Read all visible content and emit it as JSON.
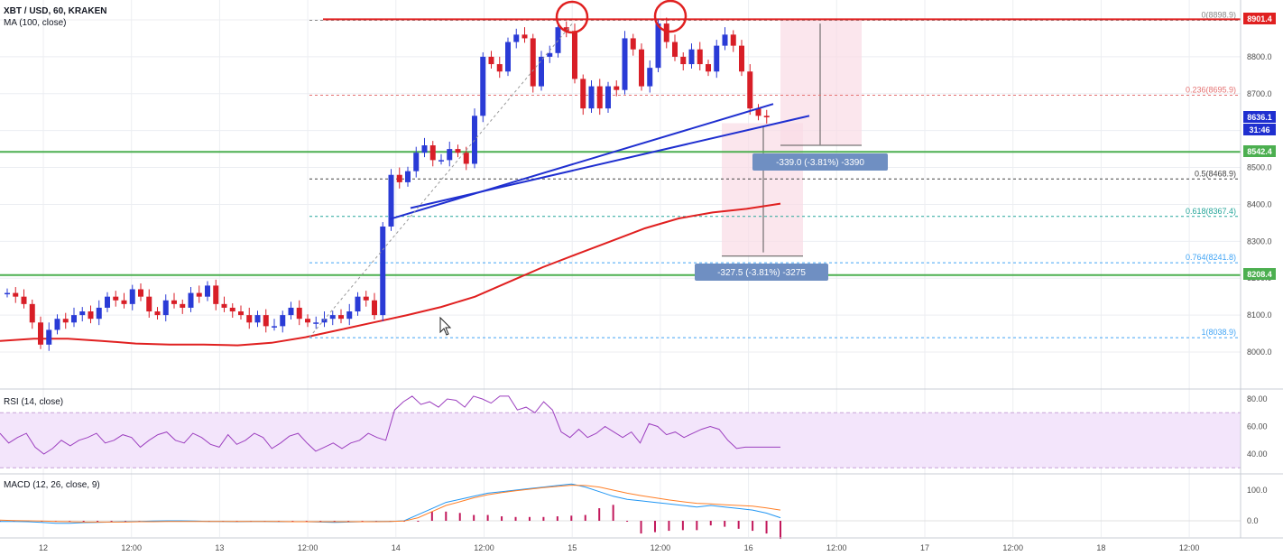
{
  "header": {
    "symbol": "XBT / USD, 60, KRAKEN",
    "ma_label": "MA (100, close)",
    "rsi_label": "RSI (14, close)",
    "macd_label": "MACD (12, 26, close, 9)"
  },
  "colors": {
    "up": "#2a3bd6",
    "down": "#d81e27",
    "ma": "#e02020",
    "trendline": "#1f2fd0",
    "resistance": "#e02020",
    "support": "#4caf50",
    "rsi": "#9c3fbf",
    "rsi_band": "#f3e5fb",
    "macd_line": "#2196f3",
    "signal_line": "#ff7f27",
    "histogram": "#c2185b",
    "measure_box": "#6f8fc2",
    "measure_zone": "#fadbe6"
  },
  "price_tags": {
    "resistance": "8901.4",
    "last": "8636.1",
    "countdown": "31:46",
    "support_upper": "8542.4",
    "support_lower": "8208.4"
  },
  "measurements": [
    {
      "label": "-339.0 (-3.81%) -3390"
    },
    {
      "label": "-327.5 (-3.81%) -3275"
    }
  ],
  "chart_data": [
    {
      "type": "candlestick",
      "title": "XBT / USD, 60, KRAKEN",
      "ylim": [
        7900,
        9000
      ],
      "y_ticks": [
        "8000.0",
        "8100.0",
        "8200.0",
        "8300.0",
        "8400.0",
        "8500.0",
        "8600.0",
        "8700.0",
        "8800.0",
        "8900.0"
      ],
      "x_ticks": [
        "12",
        "12:00",
        "13",
        "12:00",
        "14",
        "12:00",
        "15",
        "12:00",
        "16",
        "12:00",
        "17",
        "12:00",
        "18",
        "12:00"
      ],
      "fib_levels": [
        {
          "label": "0(8898.9)",
          "value": 8898.9
        },
        {
          "label": "0.236(8695.9)",
          "value": 8695.9
        },
        {
          "label": "0.5(8468.9)",
          "value": 8468.9
        },
        {
          "label": "0.618(8367.4)",
          "value": 8367.4
        },
        {
          "label": "0.764(8241.8)",
          "value": 8241.8
        },
        {
          "label": "1(8038.9)",
          "value": 8038.9
        }
      ],
      "horizontal_levels": [
        8901.4,
        8542.4,
        8208.4
      ],
      "close": [
        8160,
        8150,
        8130,
        8080,
        8020,
        8060,
        8090,
        8080,
        8100,
        8110,
        8090,
        8120,
        8150,
        8140,
        8130,
        8170,
        8150,
        8110,
        8100,
        8140,
        8130,
        8120,
        8160,
        8150,
        8180,
        8130,
        8120,
        8110,
        8100,
        8080,
        8100,
        8070,
        8070,
        8100,
        8120,
        8090,
        8080,
        8080,
        8090,
        8100,
        8090,
        8110,
        8150,
        8140,
        8100,
        8340,
        8480,
        8460,
        8490,
        8540,
        8560,
        8520,
        8520,
        8550,
        8540,
        8510,
        8640,
        8800,
        8780,
        8760,
        8840,
        8860,
        8850,
        8720,
        8800,
        8810,
        8880,
        8870,
        8740,
        8660,
        8720,
        8660,
        8720,
        8710,
        8850,
        8820,
        8720,
        8770,
        8890,
        8840,
        8800,
        8780,
        8820,
        8780,
        8760,
        8830,
        8860,
        8830,
        8760,
        8660,
        8640,
        8636
      ],
      "ma_100": [
        8030,
        8036,
        8036,
        8030,
        8023,
        8020,
        8020,
        8018,
        8025,
        8040,
        8060,
        8080,
        8100,
        8122,
        8150,
        8190,
        8230,
        8265,
        8300,
        8335,
        8362,
        8378,
        8388,
        8402
      ],
      "rsi": [
        55,
        48,
        52,
        55,
        45,
        40,
        44,
        50,
        46,
        50,
        52,
        55,
        48,
        50,
        54,
        52,
        45,
        50,
        54,
        56,
        50,
        48,
        55,
        52,
        47,
        45,
        54,
        47,
        50,
        55,
        52,
        44,
        48,
        53,
        55,
        48,
        42,
        45,
        48,
        44,
        48,
        50,
        55,
        52,
        50,
        72,
        78,
        82,
        76,
        78,
        74,
        80,
        79,
        74,
        82,
        80,
        77,
        82,
        82,
        72,
        74,
        70,
        78,
        72,
        56,
        52,
        58,
        52,
        55,
        60,
        56,
        52,
        56,
        48,
        62,
        60,
        54,
        56,
        52,
        55,
        58,
        60,
        58,
        50,
        44,
        45,
        45,
        45,
        45,
        45
      ],
      "rsi_band": [
        30,
        70
      ],
      "rsi_ticks": [
        "80.00",
        "60.00",
        "40.00"
      ],
      "macd": [
        -2,
        -2,
        -3,
        -5,
        -8,
        -8,
        -6,
        -5,
        -4,
        -3,
        -2,
        -1,
        0,
        0,
        -1,
        -2,
        -2,
        -3,
        -2,
        -2,
        -3,
        -3,
        -3,
        -4,
        -5,
        -4,
        -3,
        -2,
        -2,
        0,
        20,
        40,
        60,
        70,
        80,
        90,
        95,
        100,
        105,
        110,
        115,
        120,
        110,
        95,
        80,
        70,
        65,
        60,
        55,
        50,
        45,
        50,
        45,
        40,
        35,
        25,
        10
      ],
      "signal": [
        2,
        1,
        0,
        -1,
        -2,
        -3,
        -4,
        -4,
        -4,
        -4,
        -3,
        -3,
        -2,
        -2,
        -2,
        -2,
        -2,
        -2,
        -2,
        -2,
        -2,
        -3,
        -3,
        -3,
        -3,
        -3,
        -3,
        -3,
        -2,
        -1,
        10,
        30,
        50,
        62,
        75,
        85,
        92,
        98,
        103,
        108,
        112,
        116,
        115,
        110,
        100,
        90,
        82,
        75,
        68,
        62,
        57,
        55,
        52,
        50,
        48,
        42,
        35
      ],
      "macd_ticks": [
        "100.0",
        "0.0"
      ]
    }
  ]
}
